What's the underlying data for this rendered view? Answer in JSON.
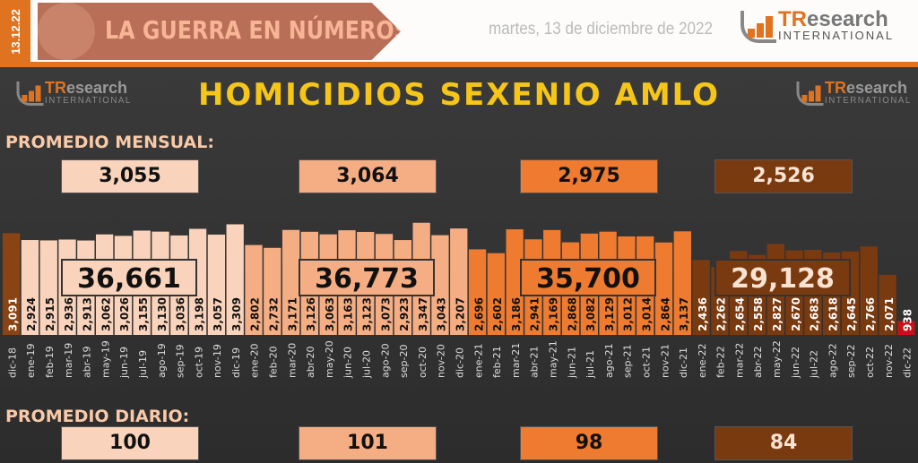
{
  "header": {
    "date_badge": "13.12.22",
    "banner": "LA GUERRA EN NÚMEROS",
    "date": "martes, 13 de diciembre de 2022",
    "logo_main": "TResearch",
    "logo_sub": "INTERNATIONAL"
  },
  "colors": {
    "c2018": "#8a4312",
    "c2019": "#f9d3bb",
    "c2020": "#f5ae84",
    "c2021": "#ee7b30",
    "c2022": "#7a3a10",
    "last": "#c8101a",
    "accent": "#e0731f",
    "title": "#f5c518"
  },
  "chart_data": {
    "type": "bar",
    "title": "HOMICIDIOS SEXENIO AMLO",
    "categories": [
      "dic-18",
      "ene-19",
      "feb-19",
      "mar-19",
      "abr-19",
      "may-19",
      "jun-19",
      "jul-19",
      "ago-19",
      "sep-19",
      "oct-19",
      "nov-19",
      "dic-19",
      "ene-20",
      "feb-20",
      "mar-20",
      "abr-20",
      "may-20",
      "jun-20",
      "jul-20",
      "ago-20",
      "sep-20",
      "oct-20",
      "nov-20",
      "dic-20",
      "ene-21",
      "feb-21",
      "mar-21",
      "abr-21",
      "may-21",
      "jun-21",
      "jul-21",
      "ago-21",
      "sep-21",
      "oct-21",
      "nov-21",
      "dic-21",
      "ene-22",
      "feb-22",
      "mar-22",
      "abr-22",
      "may-22",
      "jun-22",
      "jul-22",
      "ago-22",
      "sep-22",
      "oct-22",
      "nov-22",
      "dic-22"
    ],
    "values": [
      3091,
      2924,
      2915,
      2936,
      2913,
      3062,
      3026,
      3155,
      3130,
      3036,
      3198,
      3057,
      3309,
      2802,
      2732,
      3171,
      3126,
      3063,
      3163,
      3123,
      3073,
      2923,
      3347,
      3043,
      3207,
      2696,
      2602,
      3186,
      2941,
      3169,
      2868,
      3082,
      3129,
      3012,
      3014,
      2864,
      3137,
      2436,
      2262,
      2654,
      2558,
      2827,
      2670,
      2683,
      2618,
      2645,
      2766,
      2071,
      938
    ],
    "value_labels": [
      "3,091",
      "2,924",
      "2,915",
      "2,936",
      "2,913",
      "3,062",
      "3,026",
      "3,155",
      "3,130",
      "3,036",
      "3,198",
      "3,057",
      "3,309",
      "2,802",
      "2,732",
      "3,171",
      "3,126",
      "3,063",
      "3,163",
      "3,123",
      "3,073",
      "2,923",
      "3,347",
      "3,043",
      "3,207",
      "2,696",
      "2,602",
      "3,186",
      "2,941",
      "3,169",
      "2,868",
      "3,082",
      "3,129",
      "3,012",
      "3,014",
      "2,864",
      "3,137",
      "2,436",
      "2,262",
      "2,654",
      "2,558",
      "2,827",
      "2,670",
      "2,683",
      "2,618",
      "2,645",
      "2,766",
      "2,071",
      "938"
    ],
    "grid": false,
    "yearly": [
      {
        "total": "36,661",
        "monthly_avg": "3,055",
        "daily_avg": "100"
      },
      {
        "total": "36,773",
        "monthly_avg": "3,064",
        "daily_avg": "101"
      },
      {
        "total": "35,700",
        "monthly_avg": "2,975",
        "daily_avg": "98"
      },
      {
        "total": "29,128",
        "monthly_avg": "2,526",
        "daily_avg": "84"
      }
    ]
  },
  "labels": {
    "monthly": "PROMEDIO MENSUAL:",
    "daily": "PROMEDIO DIARIO:"
  }
}
